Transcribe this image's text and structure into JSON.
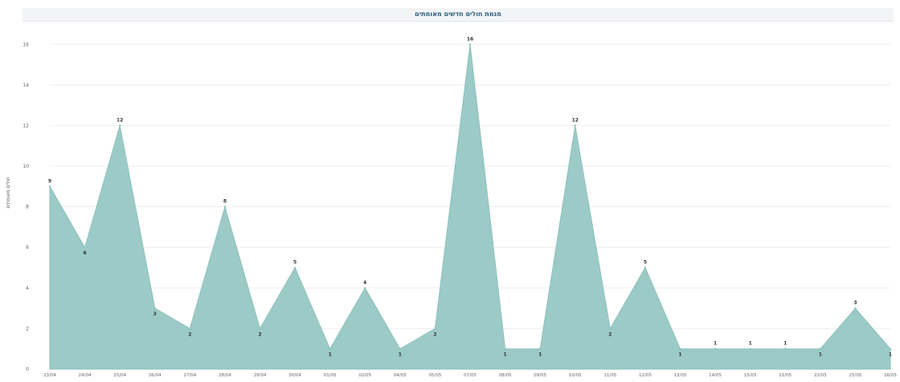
{
  "chart_data": {
    "type": "area",
    "title": "מגמת חולים חדשים מאומתים",
    "ylabel": "חולים מאומתים",
    "xlabel": "",
    "ylim": [
      0,
      17
    ],
    "yticks": [
      0,
      2,
      4,
      6,
      8,
      10,
      12,
      14,
      16
    ],
    "grid": true,
    "categories": [
      "23/04",
      "24/04",
      "25/04",
      "26/04",
      "27/04",
      "28/04",
      "29/04",
      "30/04",
      "01/05",
      "02/05",
      "04/05",
      "05/05",
      "07/05",
      "08/05",
      "09/05",
      "10/05",
      "11/05",
      "12/05",
      "13/05",
      "14/05",
      "15/05",
      "21/05",
      "22/05",
      "25/05",
      "26/05"
    ],
    "values": [
      9,
      6,
      12,
      3,
      2,
      8,
      2,
      5,
      1,
      4,
      1,
      2,
      16,
      1,
      1,
      12,
      2,
      5,
      1,
      1,
      1,
      1,
      1,
      3,
      1
    ],
    "colors": {
      "fill": "#9ccac6",
      "stroke": "#8ec2bd",
      "grid": "#eeeeee"
    }
  }
}
